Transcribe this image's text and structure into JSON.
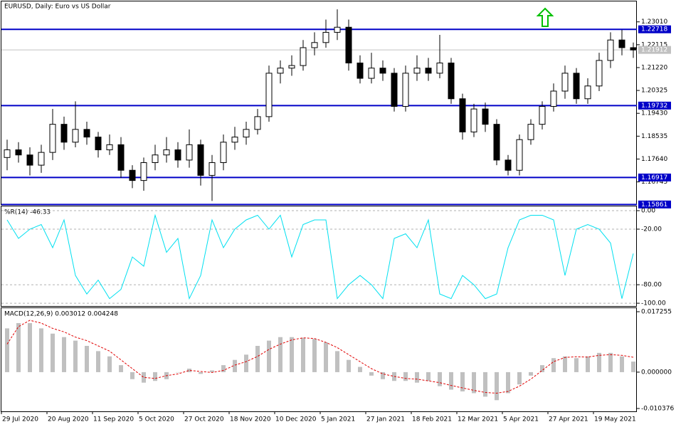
{
  "chart_data": [
    {
      "type": "candlestick",
      "title": "EURUSD, Daily: Euro vs US Dollar",
      "categories": [
        "29 Jul 2020",
        null,
        null,
        null,
        "20 Aug 2020",
        null,
        null,
        null,
        "11 Sep 2020",
        null,
        null,
        null,
        "5 Oct 2020",
        null,
        null,
        null,
        "27 Oct 2020",
        null,
        null,
        null,
        "18 Nov 2020",
        null,
        null,
        null,
        "10 Dec 2020",
        null,
        null,
        null,
        "5 Jan 2021",
        null,
        null,
        null,
        "27 Jan 2021",
        null,
        null,
        null,
        "18 Feb 2021",
        null,
        null,
        null,
        "12 Mar 2021",
        null,
        null,
        null,
        "5 Apr 2021",
        null,
        null,
        null,
        "27 Apr 2021",
        null,
        null,
        null,
        "19 May 2021",
        null,
        null,
        null
      ],
      "open": [
        1.177,
        1.18,
        1.178,
        1.174,
        1.179,
        1.19,
        1.183,
        1.188,
        1.185,
        1.18,
        1.182,
        1.172,
        1.168,
        1.175,
        1.178,
        1.18,
        1.176,
        1.182,
        1.17,
        1.175,
        1.183,
        1.185,
        1.188,
        1.193,
        1.21,
        1.212,
        1.213,
        1.22,
        1.222,
        1.226,
        1.228,
        1.214,
        1.208,
        1.212,
        1.21,
        1.197,
        1.21,
        1.212,
        1.21,
        1.214,
        1.2,
        1.187,
        1.196,
        1.19,
        1.176,
        1.172,
        1.184,
        1.19,
        1.197,
        1.203,
        1.21,
        1.2,
        1.205,
        1.215,
        1.223,
        1.22
      ],
      "high": [
        1.184,
        1.183,
        1.181,
        1.182,
        1.196,
        1.193,
        1.199,
        1.191,
        1.187,
        1.186,
        1.185,
        1.174,
        1.177,
        1.182,
        1.185,
        1.183,
        1.188,
        1.184,
        1.178,
        1.186,
        1.189,
        1.191,
        1.196,
        1.213,
        1.215,
        1.217,
        1.223,
        1.226,
        1.231,
        1.235,
        1.231,
        1.217,
        1.218,
        1.215,
        1.212,
        1.213,
        1.217,
        1.216,
        1.225,
        1.216,
        1.202,
        1.198,
        1.1985,
        1.192,
        1.178,
        1.186,
        1.192,
        1.199,
        1.206,
        1.213,
        1.212,
        1.208,
        1.218,
        1.226,
        1.227,
        1.222
      ],
      "low": [
        1.172,
        1.175,
        1.17,
        1.171,
        1.176,
        1.18,
        1.181,
        1.182,
        1.177,
        1.178,
        1.169,
        1.165,
        1.164,
        1.172,
        1.175,
        1.173,
        1.173,
        1.166,
        1.16,
        1.172,
        1.18,
        1.182,
        1.186,
        1.191,
        1.206,
        1.209,
        1.211,
        1.217,
        1.22,
        1.223,
        1.211,
        1.206,
        1.206,
        1.207,
        1.195,
        1.195,
        1.207,
        1.207,
        1.208,
        1.198,
        1.184,
        1.185,
        1.187,
        1.174,
        1.17,
        1.17,
        1.182,
        1.188,
        1.195,
        1.2,
        1.198,
        1.198,
        1.203,
        1.212,
        1.217,
        1.216
      ],
      "close": [
        1.18,
        1.178,
        1.174,
        1.179,
        1.19,
        1.183,
        1.188,
        1.185,
        1.18,
        1.182,
        1.172,
        1.168,
        1.175,
        1.178,
        1.18,
        1.176,
        1.182,
        1.17,
        1.175,
        1.183,
        1.185,
        1.188,
        1.193,
        1.21,
        1.212,
        1.213,
        1.22,
        1.222,
        1.226,
        1.228,
        1.214,
        1.208,
        1.212,
        1.21,
        1.197,
        1.21,
        1.212,
        1.21,
        1.214,
        1.2,
        1.187,
        1.196,
        1.19,
        1.176,
        1.172,
        1.184,
        1.19,
        1.197,
        1.203,
        1.21,
        1.2,
        1.205,
        1.215,
        1.223,
        1.22,
        1.2191
      ],
      "up_color": "#ffffff",
      "down_color": "#000000",
      "ylim": [
        1.1587,
        1.2381
      ],
      "yticks": [
        {
          "value": 1.2301,
          "label": "1.23010"
        },
        {
          "value": 1.22115,
          "label": "1.22115"
        },
        {
          "value": 1.2122,
          "label": "1.21220"
        },
        {
          "value": 1.20325,
          "label": "1.20325"
        },
        {
          "value": 1.1943,
          "label": "1.19430"
        },
        {
          "value": 1.18535,
          "label": "1.18535"
        },
        {
          "value": 1.1764,
          "label": "1.17640"
        },
        {
          "value": 1.16745,
          "label": "1.16745"
        }
      ],
      "levels": [
        {
          "value": 1.22718,
          "label": "1.22718"
        },
        {
          "value": 1.19732,
          "label": "1.19732"
        },
        {
          "value": 1.16917,
          "label": "1.16917"
        },
        {
          "value": 1.15861,
          "label": "1.15861"
        }
      ],
      "level_color": "#0000c8",
      "last_price": {
        "value": 1.21912,
        "label": "1.21912"
      }
    },
    {
      "type": "line",
      "title": "%R(14) -46.33",
      "color": "#00e0f0",
      "values": [
        -10,
        -30,
        -20,
        -15,
        -40,
        -10,
        -70,
        -90,
        -75,
        -95,
        -85,
        -50,
        -60,
        -5,
        -45,
        -30,
        -95,
        -70,
        -10,
        -40,
        -20,
        -10,
        -5,
        -20,
        -5,
        -50,
        -15,
        -10,
        -10,
        -95,
        -80,
        -70,
        -80,
        -95,
        -30,
        -25,
        -40,
        -10,
        -90,
        -95,
        -70,
        -80,
        -95,
        -90,
        -40,
        -10,
        -5,
        -5,
        -10,
        -70,
        -20,
        -15,
        -20,
        -35,
        -95,
        -46.33
      ],
      "ylim": [
        -103,
        4.6
      ],
      "yticks": [
        {
          "value": 0,
          "label": "0.00"
        },
        {
          "value": -20,
          "label": "-20.00"
        },
        {
          "value": -80,
          "label": "-80.00"
        },
        {
          "value": -100,
          "label": "-100.00"
        }
      ]
    },
    {
      "type": "macd",
      "title": "MACD(12,26,9) 0.003012 0.004248",
      "series": [
        {
          "name": "MACD",
          "color": "#c0c0c0",
          "values": [
            0.0125,
            0.014,
            0.014,
            0.0125,
            0.011,
            0.01,
            0.009,
            0.0075,
            0.006,
            0.0045,
            0.002,
            -0.002,
            -0.003,
            -0.0025,
            -0.002,
            0.0,
            0.001,
            -0.0005,
            0.0005,
            0.002,
            0.0035,
            0.005,
            0.0075,
            0.009,
            0.01,
            0.01,
            0.0098,
            0.0095,
            0.0085,
            0.006,
            0.0035,
            0.0015,
            -0.001,
            -0.002,
            -0.0025,
            -0.0025,
            -0.003,
            -0.0025,
            -0.004,
            -0.005,
            -0.0055,
            -0.006,
            -0.007,
            -0.008,
            -0.006,
            -0.0035,
            -0.001,
            0.002,
            0.004,
            0.0045,
            0.004,
            0.0045,
            0.0055,
            0.0055,
            0.0045,
            0.003012
          ]
        },
        {
          "name": "Signal",
          "color": "#e00000",
          "values": [
            0.008,
            0.013,
            0.0148,
            0.014,
            0.0125,
            0.0115,
            0.01,
            0.009,
            0.0075,
            0.006,
            0.0035,
            0.001,
            -0.0015,
            -0.0018,
            -0.001,
            -0.0005,
            0.0005,
            0.0002,
            -0.0001,
            0.0005,
            0.002,
            0.003,
            0.0045,
            0.0065,
            0.008,
            0.0092,
            0.0098,
            0.0096,
            0.0085,
            0.007,
            0.005,
            0.003,
            0.001,
            -0.0005,
            -0.0012,
            -0.0018,
            -0.002,
            -0.0025,
            -0.003,
            -0.0038,
            -0.0045,
            -0.0052,
            -0.0058,
            -0.006,
            -0.0055,
            -0.004,
            -0.002,
            0.0005,
            0.003,
            0.0042,
            0.0044,
            0.0043,
            0.0048,
            0.005,
            0.0048,
            0.004248
          ]
        }
      ],
      "ylim": [
        -0.01119,
        0.01827
      ],
      "yticks": [
        {
          "value": 0.017255,
          "label": "0.017255"
        },
        {
          "value": 0,
          "label": "0.000000"
        },
        {
          "value": -0.010376,
          "label": "-0.010376"
        }
      ]
    }
  ]
}
